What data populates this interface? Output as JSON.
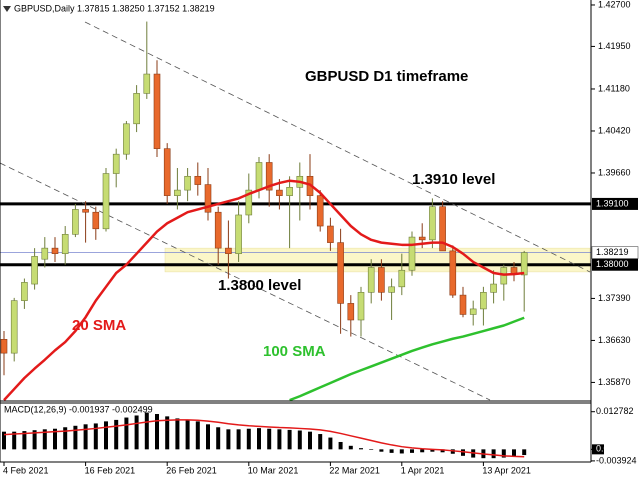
{
  "chart_data": [
    {
      "type": "candlestick",
      "header": "GBPUSD,Daily 1.37815 1.38250 1.37152 1.38219",
      "title": "GBPUSD D1 timeframe",
      "annotations": [
        "1.3910 level",
        "1.3800 level"
      ],
      "categories": [
        "4 Feb 2021",
        null,
        null,
        null,
        null,
        null,
        null,
        null,
        "16 Feb 2021",
        null,
        null,
        null,
        null,
        null,
        null,
        null,
        "26 Feb 2021",
        null,
        null,
        null,
        null,
        null,
        null,
        null,
        "10 Mar 2021",
        null,
        null,
        null,
        null,
        null,
        null,
        null,
        "22 Mar 2021",
        null,
        null,
        null,
        null,
        null,
        null,
        "1 Apr 2021",
        null,
        null,
        null,
        null,
        null,
        null,
        null,
        "13 Apr 2021",
        null,
        null,
        null,
        null
      ],
      "open": [
        1.3665,
        1.364,
        1.3735,
        1.3765,
        1.381,
        1.383,
        1.382,
        1.3855,
        1.39,
        1.3895,
        1.3865,
        1.3965,
        1.4,
        1.4055,
        1.411,
        1.4145,
        1.401,
        1.3925,
        1.3935,
        1.396,
        1.3945,
        1.3895,
        1.383,
        1.382,
        1.389,
        1.3935,
        1.3985,
        1.3935,
        1.3925,
        1.394,
        1.396,
        1.3925,
        1.387,
        1.384,
        1.373,
        1.37,
        1.375,
        1.3795,
        1.375,
        1.376,
        1.379,
        1.385,
        1.3845,
        1.3905,
        1.3825,
        1.3745,
        1.371,
        1.372,
        1.375,
        1.3765,
        1.3795,
        1.37815
      ],
      "high": [
        1.368,
        1.374,
        1.3775,
        1.383,
        1.385,
        1.385,
        1.387,
        1.391,
        1.3915,
        1.3905,
        1.3975,
        1.401,
        1.406,
        1.4125,
        1.424,
        1.417,
        1.402,
        1.3975,
        1.3975,
        1.3985,
        1.3975,
        1.3905,
        1.388,
        1.3915,
        1.3965,
        1.3995,
        1.4,
        1.3955,
        1.396,
        1.3985,
        1.4,
        1.3935,
        1.3885,
        1.3865,
        1.3745,
        1.376,
        1.381,
        1.381,
        1.3775,
        1.382,
        1.386,
        1.3875,
        1.392,
        1.3915,
        1.3835,
        1.376,
        1.3735,
        1.376,
        1.379,
        1.38,
        1.3805,
        1.3825
      ],
      "low": [
        1.36,
        1.3625,
        1.372,
        1.3755,
        1.3795,
        1.3805,
        1.38,
        1.385,
        1.384,
        1.3845,
        1.386,
        1.394,
        1.399,
        1.404,
        1.41,
        1.3995,
        1.391,
        1.39,
        1.3915,
        1.3925,
        1.388,
        1.38,
        1.3775,
        1.3805,
        1.3875,
        1.392,
        1.3905,
        1.39,
        1.383,
        1.388,
        1.39,
        1.386,
        1.3825,
        1.3675,
        1.367,
        1.367,
        1.373,
        1.3735,
        1.37,
        1.3745,
        1.378,
        1.383,
        1.383,
        1.3825,
        1.374,
        1.3705,
        1.369,
        1.369,
        1.373,
        1.3735,
        1.377,
        1.37152
      ],
      "close": [
        1.364,
        1.3735,
        1.3768,
        1.3815,
        1.383,
        1.382,
        1.3855,
        1.39,
        1.3895,
        1.3865,
        1.3965,
        1.4,
        1.4055,
        1.411,
        1.4145,
        1.401,
        1.3925,
        1.3935,
        1.396,
        1.3945,
        1.3895,
        1.383,
        1.382,
        1.389,
        1.3935,
        1.3985,
        1.3935,
        1.3925,
        1.394,
        1.396,
        1.3925,
        1.387,
        1.384,
        1.373,
        1.37,
        1.375,
        1.3795,
        1.375,
        1.376,
        1.379,
        1.385,
        1.3845,
        1.3905,
        1.3825,
        1.3745,
        1.371,
        1.372,
        1.375,
        1.3765,
        1.3795,
        1.3782,
        1.38219
      ],
      "up_color": "#c6dc73",
      "down_color": "#e8692c",
      "series": [
        {
          "name": "20 SMA",
          "color": "#e31a1a",
          "values": [
            1.3555,
            1.3575,
            1.3595,
            1.3612,
            1.3628,
            1.3645,
            1.366,
            1.368,
            1.3705,
            1.3735,
            1.376,
            1.3785,
            1.38,
            1.382,
            1.384,
            1.386,
            1.3875,
            1.3885,
            1.3895,
            1.39,
            1.3905,
            1.391,
            1.3915,
            1.392,
            1.3928,
            1.3935,
            1.3942,
            1.3948,
            1.3952,
            1.395,
            1.3945,
            1.393,
            1.391,
            1.389,
            1.387,
            1.3855,
            1.3845,
            1.384,
            1.3838,
            1.3836,
            1.3836,
            1.3838,
            1.384,
            1.384,
            1.3832,
            1.382,
            1.3805,
            1.3795,
            1.3785,
            1.3782,
            1.3783,
            1.3785
          ]
        },
        {
          "name": "100 SMA",
          "color": "#2ec12e",
          "values": [
            null,
            null,
            null,
            null,
            null,
            null,
            null,
            null,
            null,
            null,
            null,
            null,
            null,
            null,
            null,
            null,
            null,
            null,
            null,
            null,
            null,
            null,
            null,
            null,
            null,
            null,
            null,
            null,
            1.3555,
            1.3562,
            1.357,
            1.3578,
            1.3586,
            1.3594,
            1.3602,
            1.3609,
            1.3616,
            1.3623,
            1.363,
            1.3637,
            1.3644,
            1.365,
            1.3656,
            1.3661,
            1.3666,
            1.367,
            1.3675,
            1.368,
            1.3685,
            1.369,
            1.3697,
            1.3704
          ]
        }
      ],
      "ylim": [
        1.35552,
        1.4279
      ],
      "yticks": [
        {
          "value": 1.427,
          "label": "1.42700"
        },
        {
          "value": 1.4195,
          "label": "1.41950"
        },
        {
          "value": 1.4118,
          "label": "1.41180"
        },
        {
          "value": 1.4042,
          "label": "1.40420"
        },
        {
          "value": 1.3966,
          "label": "1.39660"
        },
        {
          "value": 1.3739,
          "label": "1.37390"
        },
        {
          "value": 1.3663,
          "label": "1.36630"
        },
        {
          "value": 1.3587,
          "label": "1.35870"
        }
      ],
      "levels": [
        {
          "value": 1.391,
          "label": "1.39100"
        },
        {
          "value": 1.38,
          "label": "1.38000"
        }
      ],
      "last_price": 1.38219,
      "zone": [
        1.3787,
        1.383
      ]
    },
    {
      "type": "macd",
      "title": "MACD(12,26,9) -0.001937 -0.002499",
      "values": [
        0.006,
        0.006,
        0.0062,
        0.0065,
        0.0068,
        0.007,
        0.0075,
        0.008,
        0.0085,
        0.0088,
        0.0095,
        0.01,
        0.0108,
        0.0115,
        0.0125,
        0.012,
        0.0112,
        0.0105,
        0.01,
        0.0095,
        0.0085,
        0.0075,
        0.0068,
        0.0068,
        0.007,
        0.0072,
        0.007,
        0.0068,
        0.0066,
        0.0064,
        0.006,
        0.0052,
        0.004,
        0.0025,
        0.0012,
        0.0004,
        -0.0002,
        -0.0008,
        -0.0012,
        -0.0014,
        -0.0012,
        -0.001,
        -0.0008,
        -0.001,
        -0.0015,
        -0.0022,
        -0.0028,
        -0.003,
        -0.003,
        -0.0028,
        -0.0024,
        -0.001937
      ],
      "color": "#000000",
      "signal": [
        0.005,
        0.0052,
        0.0054,
        0.0056,
        0.0058,
        0.006,
        0.0062,
        0.0065,
        0.0068,
        0.0071,
        0.0075,
        0.0079,
        0.0083,
        0.0088,
        0.0093,
        0.0097,
        0.0099,
        0.01,
        0.01,
        0.0099,
        0.0096,
        0.0092,
        0.0087,
        0.0083,
        0.008,
        0.0078,
        0.0076,
        0.0074,
        0.0073,
        0.0071,
        0.0069,
        0.0066,
        0.0061,
        0.0054,
        0.0046,
        0.0038,
        0.003,
        0.0022,
        0.0015,
        0.0009,
        0.0005,
        0.0002,
        0.0,
        -0.0002,
        -0.0005,
        -0.0008,
        -0.0012,
        -0.0016,
        -0.0019,
        -0.0022,
        -0.0024,
        -0.002499
      ],
      "signal_color": "#e31a1a",
      "ylim": [
        -0.0043,
        0.0154
      ],
      "yticks": [
        0.012782,
        {
          "value": 0,
          "label": "0.00"
        },
        -0.003924
      ]
    }
  ]
}
